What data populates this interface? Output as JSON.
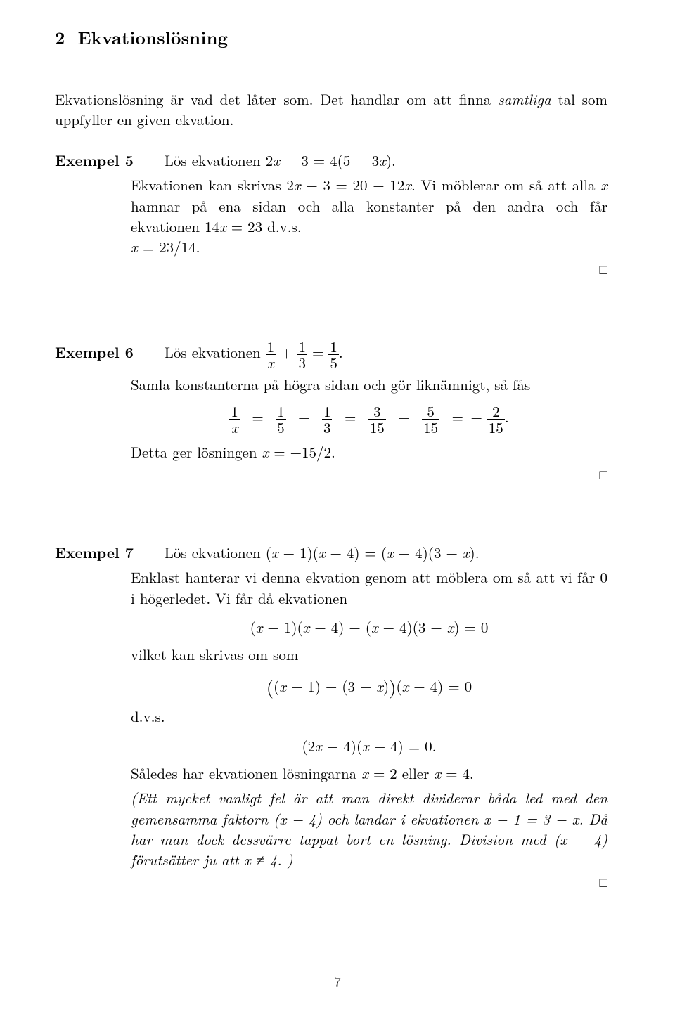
{
  "page": {
    "number": "7",
    "background_color": "#ffffff",
    "text_color": "#000000",
    "fontsize_body_pt": 11,
    "fontsize_heading_pt": 13,
    "font_family": "Computer Modern / Latin Modern (serif)"
  },
  "section": {
    "number": "2",
    "title": "Ekvationslösning"
  },
  "intro": {
    "p1_a": "Ekvationslösning är vad det låter som. Det handlar om att finna ",
    "p1_em": "samtliga",
    "p1_b": " tal som uppfyller en given ekvation."
  },
  "ex5": {
    "label": "Exempel 5",
    "prompt_a": "Lös ekvationen  ",
    "eq1": "2x − 3 = 4(5 − 3x).",
    "body_a": "Ekvationen kan skrivas  ",
    "eq2": "2x − 3 = 20 − 12x.",
    "body_b": "  Vi möblerar om så att alla ",
    "body_c": " hamnar på ena sidan och alla konstanter på den andra och får ekvationen  ",
    "eq3": "14x = 23",
    "body_d": "  d.v.s.",
    "eq4": "x = 23/14."
  },
  "ex6": {
    "label": "Exempel 6",
    "prompt_a": "Lös ekvationen  ",
    "eq_lhs_frac1_num": "1",
    "eq_lhs_frac1_den": "x",
    "plus": " + ",
    "eq_lhs_frac2_num": "1",
    "eq_lhs_frac2_den": "3",
    "equals": " = ",
    "eq_rhs_frac_num": "1",
    "eq_rhs_frac_den": "5",
    "period": ".",
    "line2": "Samla konstanterna på högra sidan och gör liknämnigt, så fås",
    "disp_f1n": "1",
    "disp_f1d": "x",
    "disp_f2n": "1",
    "disp_f2d": "5",
    "disp_f3n": "1",
    "disp_f3d": "3",
    "disp_f4n": "3",
    "disp_f4d": "15",
    "disp_f5n": "5",
    "disp_f5d": "15",
    "disp_f6n": "2",
    "disp_f6d": "15",
    "line3_a": "Detta ger lösningen  ",
    "line3_b": "x = −15/2."
  },
  "ex7": {
    "label": "Exempel 7",
    "prompt_a": "Lös ekvationen  ",
    "eq1": "(x − 1)(x − 4) = (x − 4)(3 − x).",
    "p1": "Enklast hanterar vi denna ekvation genom att möblera om så att vi får 0 i högerledet. Vi får då ekvationen",
    "disp1": "(x − 1)(x − 4) − (x − 4)(3 − x) = 0",
    "p2": "vilket kan skrivas om som",
    "disp2_inner": "(x − 1) − (3 − x)",
    "disp2_tail": "(x − 4) = 0",
    "p3": "d.v.s.",
    "disp3": "(2x − 4)(x − 4) = 0.",
    "p4_a": "Således har ekvationen lösningarna ",
    "p4_b": "x = 2",
    "p4_c": " eller ",
    "p4_d": "x = 4.",
    "note_a": "(Ett mycket vanligt fel är att man direkt dividerar båda led med den gemensamma faktorn ",
    "note_b": "(x − 4)",
    "note_c": " och landar i ekvationen  ",
    "note_d": "x − 1 = 3 − x.",
    "note_e": "  Då har man dock dessvärre tappat bort en lösning. Division med ",
    "note_f": "(x − 4)",
    "note_g": " förutsätter ju att ",
    "note_h": "x ≠ 4.",
    "note_i": " )"
  },
  "qed": "□"
}
